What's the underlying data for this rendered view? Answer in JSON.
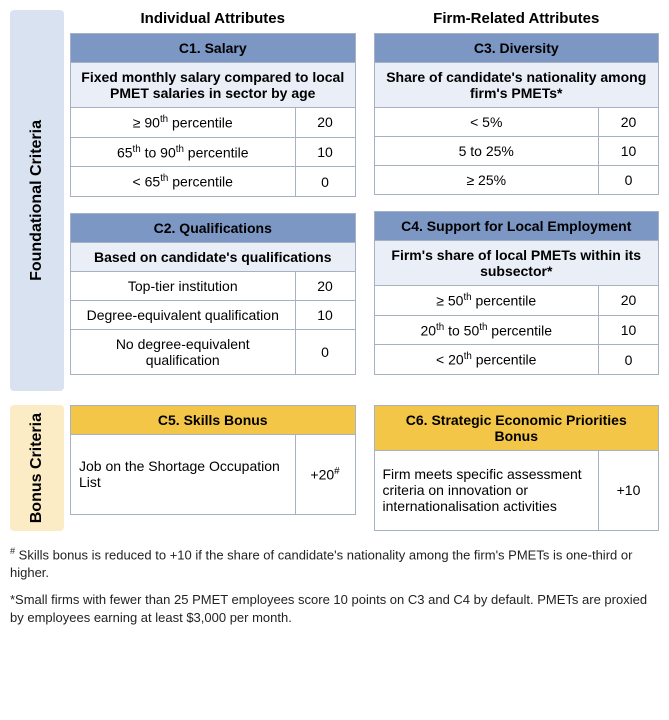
{
  "headers": {
    "individual": "Individual Attributes",
    "firm": "Firm-Related Attributes"
  },
  "sections": {
    "foundational": {
      "label": "Foundational Criteria",
      "bg": "#d9e2f1"
    },
    "bonus": {
      "label": "Bonus Criteria",
      "bg": "#fbecc5"
    }
  },
  "c1": {
    "title": "C1. Salary",
    "desc_html": "Fixed monthly salary compared to local PMET salaries in sector by age",
    "rows": [
      {
        "label_html": "≥ 90<sup>th</sup> percentile",
        "value": "20"
      },
      {
        "label_html": "65<sup>th</sup> to 90<sup>th</sup> percentile",
        "value": "10"
      },
      {
        "label_html": "< 65<sup>th</sup> percentile",
        "value": "0"
      }
    ]
  },
  "c2": {
    "title": "C2. Qualifications",
    "desc_html": "Based on candidate's qualifications",
    "rows": [
      {
        "label_html": "Top-tier institution",
        "value": "20"
      },
      {
        "label_html": "Degree-equivalent qualification",
        "value": "10"
      },
      {
        "label_html": "No degree-equivalent qualification",
        "value": "0"
      }
    ]
  },
  "c3": {
    "title": "C3. Diversity",
    "desc_html": "Share of candidate's nationality among firm's PMETs*",
    "rows": [
      {
        "label_html": "< 5%",
        "value": "20"
      },
      {
        "label_html": "5 to 25%",
        "value": "10"
      },
      {
        "label_html": "≥ 25%",
        "value": "0"
      }
    ]
  },
  "c4": {
    "title": "C4. Support for Local Employment",
    "desc_html": "Firm's share of local PMETs within its subsector*",
    "rows": [
      {
        "label_html": "≥ 50<sup>th</sup> percentile",
        "value": "20"
      },
      {
        "label_html": "20<sup>th</sup> to 50<sup>th</sup> percentile",
        "value": "10"
      },
      {
        "label_html": "< 20<sup>th</sup> percentile",
        "value": "0"
      }
    ]
  },
  "c5": {
    "title": "C5. Skills Bonus",
    "label_html": "Job on the Shortage Occupation List",
    "value_html": "+20<sup>#</sup>"
  },
  "c6": {
    "title": "C6. Strategic Economic Priorities Bonus",
    "label_html": "Firm meets specific assessment criteria on innovation or internationalisation activities",
    "value_html": "+10"
  },
  "notes": {
    "hash_html": "<sup>#</sup> Skills bonus is reduced to +10 if the share of candidate's nationality among the firm's PMETs is one-third or higher.",
    "star_html": "*Small firms with fewer than 25 PMET employees score 10 points on C3 and C4 by default. PMETs are proxied by employees earning at least $3,000 per month."
  },
  "colors": {
    "foundational_header": "#7c97c4",
    "foundational_desc": "#e9eef7",
    "bonus_header": "#f3c648",
    "border": "#a6b2c4"
  }
}
